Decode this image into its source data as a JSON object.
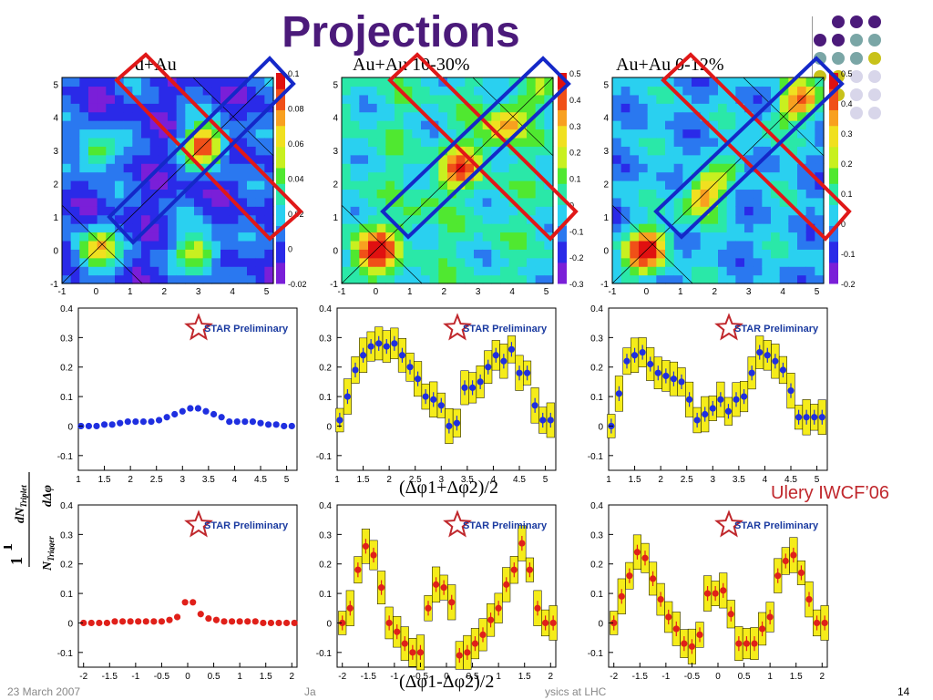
{
  "title": "Projections",
  "columns": [
    "d+Au",
    "Au+Au 10-30%",
    "Au+Au 0-12%"
  ],
  "sum_axis_label": "(Δφ1+Δφ2)/2",
  "diff_axis_label": "(Δφ1-Δφ2)/2",
  "y_axis_label": "1/N_Trigger dN_Triplet/dΔφ",
  "credit": "Ulery IWCF’06",
  "star_label": "STAR Preliminary",
  "footer": {
    "date": "23 March 2007",
    "author": "Ja",
    "topic": "ysics at LHC",
    "page": "14"
  },
  "colors": {
    "title": "#4b1a7a",
    "blue_points": "#1f2fe0",
    "red_points": "#e0201a",
    "band": "#f5ec1a",
    "red_box": "#e01818",
    "blue_box": "#1428c8",
    "dot_purple": "#4b1a7a",
    "dot_teal": "#7aa6a6",
    "dot_olive": "#c8c21a",
    "dot_lav": "#d8d6ea"
  },
  "chart_data": [
    {
      "type": "heatmap",
      "label": "d+Au",
      "x_range": [
        -1,
        5.2
      ],
      "y_range": [
        -1,
        5.2
      ],
      "z_range": [
        -0.02,
        0.1
      ],
      "z_ticks": [
        "-0.02",
        "0",
        "0.02",
        "0.04",
        "0.06",
        "0.08",
        "0.1"
      ],
      "peaks": [
        {
          "x": 0,
          "y": 0,
          "z": 0.07
        },
        {
          "x": 3.2,
          "y": 3.2,
          "z": 0.09
        },
        {
          "x": 3,
          "y": 0,
          "z": 0.06
        },
        {
          "x": 0,
          "y": 3,
          "z": 0.05
        }
      ]
    },
    {
      "type": "heatmap",
      "label": "Au+Au 10-30%",
      "x_range": [
        -1,
        5.2
      ],
      "y_range": [
        -1,
        5.2
      ],
      "z_range": [
        -0.3,
        0.5
      ],
      "z_ticks": [
        "-0.3",
        "-0.2",
        "-0.1",
        "0",
        "0.1",
        "0.2",
        "0.3",
        "0.4",
        "0.5"
      ],
      "peaks": [
        {
          "x": 0,
          "y": 0,
          "z": 0.45
        },
        {
          "x": 2.5,
          "y": 2.5,
          "z": 0.3
        },
        {
          "x": 3.8,
          "y": 3.8,
          "z": 0.25
        }
      ]
    },
    {
      "type": "heatmap",
      "label": "Au+Au 0-12%",
      "x_range": [
        -1,
        5.2
      ],
      "y_range": [
        -1,
        5.2
      ],
      "z_range": [
        -0.2,
        0.5
      ],
      "z_ticks": [
        "-0.2",
        "-0.1",
        "0",
        "0.1",
        "0.2",
        "0.3",
        "0.4",
        "0.5"
      ],
      "peaks": [
        {
          "x": 0,
          "y": 0,
          "z": 0.45
        },
        {
          "x": 1.7,
          "y": 1.7,
          "z": 0.3
        },
        {
          "x": 4.5,
          "y": 4.5,
          "z": 0.3
        }
      ]
    },
    {
      "type": "scatter",
      "label": "d+Au sum",
      "xlim": [
        1,
        5.2
      ],
      "ylim": [
        -0.15,
        0.4
      ],
      "x": [
        1.05,
        1.2,
        1.35,
        1.5,
        1.65,
        1.8,
        1.95,
        2.1,
        2.25,
        2.4,
        2.55,
        2.7,
        2.85,
        3.0,
        3.15,
        3.3,
        3.45,
        3.6,
        3.75,
        3.9,
        4.05,
        4.2,
        4.35,
        4.5,
        4.65,
        4.8,
        4.95,
        5.1
      ],
      "y": [
        0.0,
        0.0,
        0.0,
        0.005,
        0.005,
        0.01,
        0.015,
        0.015,
        0.015,
        0.015,
        0.02,
        0.03,
        0.04,
        0.05,
        0.06,
        0.06,
        0.05,
        0.04,
        0.03,
        0.015,
        0.015,
        0.015,
        0.015,
        0.01,
        0.005,
        0.005,
        0.0,
        0.0
      ]
    },
    {
      "type": "scatter",
      "label": "Au+Au 10-30% sum",
      "xlim": [
        1,
        5.2
      ],
      "ylim": [
        -0.15,
        0.4
      ],
      "x": [
        1.05,
        1.2,
        1.35,
        1.5,
        1.65,
        1.8,
        1.95,
        2.1,
        2.25,
        2.4,
        2.55,
        2.7,
        2.85,
        3.0,
        3.15,
        3.3,
        3.45,
        3.6,
        3.75,
        3.9,
        4.05,
        4.2,
        4.35,
        4.5,
        4.65,
        4.8,
        4.95,
        5.1
      ],
      "y": [
        0.02,
        0.1,
        0.19,
        0.24,
        0.27,
        0.28,
        0.27,
        0.28,
        0.24,
        0.2,
        0.16,
        0.1,
        0.09,
        0.07,
        0.0,
        0.01,
        0.13,
        0.13,
        0.15,
        0.2,
        0.24,
        0.22,
        0.26,
        0.18,
        0.18,
        0.07,
        0.02,
        0.02
      ]
    },
    {
      "type": "scatter",
      "label": "Au+Au 0-12% sum",
      "xlim": [
        1,
        5.2
      ],
      "ylim": [
        -0.15,
        0.4
      ],
      "x": [
        1.05,
        1.2,
        1.35,
        1.5,
        1.65,
        1.8,
        1.95,
        2.1,
        2.25,
        2.4,
        2.55,
        2.7,
        2.85,
        3.0,
        3.15,
        3.3,
        3.45,
        3.6,
        3.75,
        3.9,
        4.05,
        4.2,
        4.35,
        4.5,
        4.65,
        4.8,
        4.95,
        5.1
      ],
      "y": [
        0.0,
        0.11,
        0.22,
        0.24,
        0.25,
        0.21,
        0.18,
        0.17,
        0.16,
        0.15,
        0.09,
        0.02,
        0.04,
        0.06,
        0.09,
        0.05,
        0.09,
        0.1,
        0.18,
        0.25,
        0.24,
        0.22,
        0.19,
        0.12,
        0.03,
        0.03,
        0.03,
        0.03
      ]
    },
    {
      "type": "scatter",
      "label": "d+Au diff",
      "xlim": [
        -2.1,
        2.1
      ],
      "ylim": [
        -0.15,
        0.4
      ],
      "x": [
        -2.0,
        -1.85,
        -1.7,
        -1.55,
        -1.4,
        -1.25,
        -1.1,
        -0.95,
        -0.8,
        -0.65,
        -0.5,
        -0.35,
        -0.2,
        -0.05,
        0.1,
        0.25,
        0.4,
        0.55,
        0.7,
        0.85,
        1.0,
        1.15,
        1.3,
        1.45,
        1.6,
        1.75,
        1.9,
        2.05
      ],
      "y": [
        0.0,
        0.0,
        0.0,
        0.0,
        0.005,
        0.005,
        0.005,
        0.005,
        0.005,
        0.005,
        0.005,
        0.01,
        0.02,
        0.07,
        0.07,
        0.03,
        0.015,
        0.01,
        0.005,
        0.005,
        0.005,
        0.005,
        0.005,
        0.0,
        0.0,
        0.0,
        0.0,
        0.0
      ]
    },
    {
      "type": "scatter",
      "label": "Au+Au 10-30% diff",
      "xlim": [
        -2.1,
        2.1
      ],
      "ylim": [
        -0.15,
        0.4
      ],
      "x": [
        -2.0,
        -1.85,
        -1.7,
        -1.55,
        -1.4,
        -1.25,
        -1.1,
        -0.95,
        -0.8,
        -0.65,
        -0.5,
        -0.35,
        -0.2,
        -0.05,
        0.1,
        0.25,
        0.4,
        0.55,
        0.7,
        0.85,
        1.0,
        1.15,
        1.3,
        1.45,
        1.6,
        1.75,
        1.9,
        2.05
      ],
      "y": [
        0.0,
        0.05,
        0.18,
        0.26,
        0.23,
        0.12,
        0.0,
        -0.03,
        -0.07,
        -0.1,
        -0.1,
        0.05,
        0.13,
        0.12,
        0.07,
        -0.11,
        -0.1,
        -0.07,
        -0.04,
        0.01,
        0.05,
        0.13,
        0.18,
        0.27,
        0.18,
        0.05,
        0.0,
        0.0
      ]
    },
    {
      "type": "scatter",
      "label": "Au+Au 0-12% diff",
      "xlim": [
        -2.1,
        2.1
      ],
      "ylim": [
        -0.15,
        0.4
      ],
      "x": [
        -2.0,
        -1.85,
        -1.7,
        -1.55,
        -1.4,
        -1.25,
        -1.1,
        -0.95,
        -0.8,
        -0.65,
        -0.5,
        -0.35,
        -0.2,
        -0.05,
        0.1,
        0.25,
        0.4,
        0.55,
        0.7,
        0.85,
        1.0,
        1.15,
        1.3,
        1.45,
        1.6,
        1.75,
        1.9,
        2.05
      ],
      "y": [
        0.0,
        0.09,
        0.16,
        0.24,
        0.22,
        0.15,
        0.08,
        0.02,
        -0.02,
        -0.07,
        -0.08,
        -0.04,
        0.1,
        0.1,
        0.11,
        0.03,
        -0.07,
        -0.07,
        -0.07,
        -0.02,
        0.02,
        0.16,
        0.21,
        0.23,
        0.17,
        0.08,
        0.0,
        0.0
      ]
    }
  ]
}
